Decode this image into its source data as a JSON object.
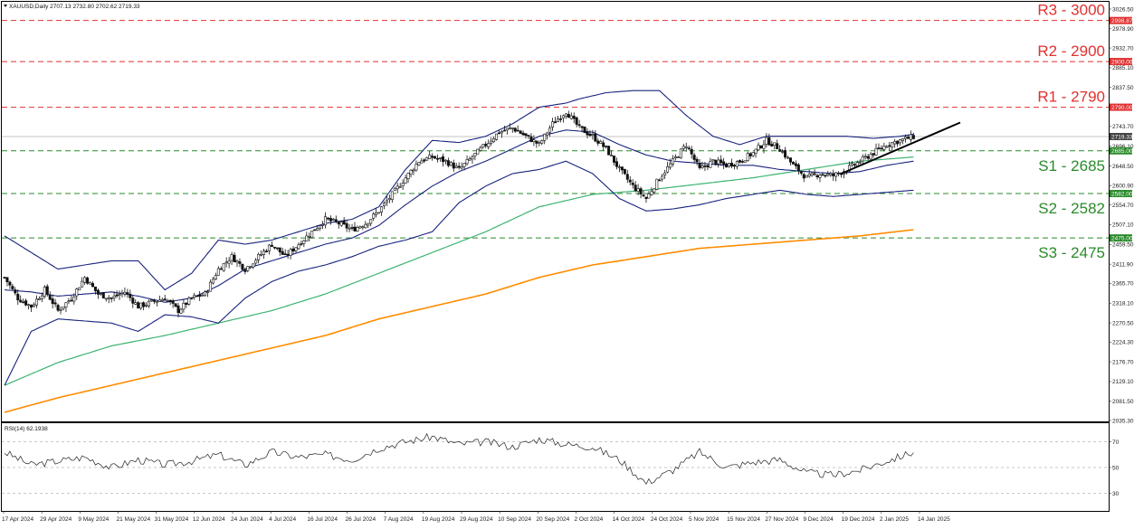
{
  "header": {
    "symbol_line": "XAUUSD,Daily  2707.13 2732.80 2702.62 2719.33",
    "rsi_line": "RSI(14) 62.1938"
  },
  "colors": {
    "resistance": "#e03030",
    "support": "#2a8a2a",
    "bollinger": "#1a237e",
    "ma100": "#3cb371",
    "ma200": "#ff8c00",
    "trendline": "#000000",
    "candle_up": "#111111",
    "candle_down": "#111111"
  },
  "price_axis": {
    "ticks": [
      "3026.50",
      "2978.90",
      "2932.70",
      "2885.10",
      "2837.50",
      "2743.70",
      "2696.10",
      "2648.50",
      "2600.90",
      "2554.70",
      "2507.10",
      "2459.50",
      "2411.90",
      "2365.70",
      "2318.10",
      "2270.50",
      "2224.30",
      "2176.70",
      "2129.10",
      "2081.50",
      "2035.30"
    ],
    "badges": [
      {
        "text": "2998.87",
        "color": "#e03030",
        "value": 2998.87
      },
      {
        "text": "2900.00",
        "color": "#e03030",
        "value": 2900
      },
      {
        "text": "2790.00",
        "color": "#e03030",
        "value": 2790
      },
      {
        "text": "2719.33",
        "color": "#444444",
        "value": 2719.33
      },
      {
        "text": "2685.00",
        "color": "#2a8a2a",
        "value": 2685
      },
      {
        "text": "2582.00",
        "color": "#2a8a2a",
        "value": 2582
      },
      {
        "text": "2475.00",
        "color": "#2a8a2a",
        "value": 2475
      }
    ]
  },
  "levels": [
    {
      "label": "R3 - 3000",
      "value": 2998.87,
      "kind": "resistance"
    },
    {
      "label": "R2 - 2900",
      "value": 2900,
      "kind": "resistance"
    },
    {
      "label": "R1 - 2790",
      "value": 2790,
      "kind": "resistance"
    },
    {
      "label": "S1 - 2685",
      "value": 2685,
      "kind": "support"
    },
    {
      "label": "S2 - 2582",
      "value": 2582,
      "kind": "support"
    },
    {
      "label": "S3 - 2475",
      "value": 2475,
      "kind": "support"
    }
  ],
  "time_axis": [
    "17 Apr 2024",
    "29 Apr 2024",
    "9 May 2024",
    "21 May 2024",
    "31 May 2024",
    "12 Jun 2024",
    "24 Jun 2024",
    "4 Jul 2024",
    "16 Jul 2024",
    "26 Jul 2024",
    "7 Aug 2024",
    "19 Aug 2024",
    "29 Aug 2024",
    "10 Sep 2024",
    "20 Sep 2024",
    "2 Oct 2024",
    "14 Oct 2024",
    "24 Oct 2024",
    "5 Nov 2024",
    "15 Nov 2024",
    "27 Nov 2024",
    "9 Dec 2024",
    "19 Dec 2024",
    "2 Jan 2025",
    "14 Jan 2025"
  ],
  "rsi_axis": [
    "70",
    "50",
    "30"
  ],
  "chart_data": {
    "type": "candlestick",
    "title": "XAUUSD,Daily",
    "ylim": [
      2035.3,
      3026.5
    ],
    "rsi_ylim": [
      17,
      83
    ],
    "close_path": [
      [
        0,
        2380
      ],
      [
        5,
        2330
      ],
      [
        10,
        2310
      ],
      [
        15,
        2350
      ],
      [
        20,
        2300
      ],
      [
        25,
        2330
      ],
      [
        30,
        2380
      ],
      [
        35,
        2340
      ],
      [
        40,
        2330
      ],
      [
        45,
        2345
      ],
      [
        50,
        2310
      ],
      [
        55,
        2320
      ],
      [
        60,
        2330
      ],
      [
        65,
        2300
      ],
      [
        70,
        2330
      ],
      [
        75,
        2340
      ],
      [
        80,
        2400
      ],
      [
        85,
        2430
      ],
      [
        90,
        2400
      ],
      [
        95,
        2430
      ],
      [
        100,
        2460
      ],
      [
        105,
        2430
      ],
      [
        110,
        2460
      ],
      [
        115,
        2490
      ],
      [
        120,
        2520
      ],
      [
        125,
        2510
      ],
      [
        130,
        2495
      ],
      [
        135,
        2510
      ],
      [
        140,
        2540
      ],
      [
        145,
        2580
      ],
      [
        150,
        2620
      ],
      [
        155,
        2660
      ],
      [
        160,
        2670
      ],
      [
        165,
        2660
      ],
      [
        170,
        2640
      ],
      [
        175,
        2670
      ],
      [
        180,
        2700
      ],
      [
        185,
        2730
      ],
      [
        190,
        2740
      ],
      [
        195,
        2720
      ],
      [
        200,
        2700
      ],
      [
        205,
        2750
      ],
      [
        210,
        2780
      ],
      [
        215,
        2740
      ],
      [
        220,
        2720
      ],
      [
        225,
        2690
      ],
      [
        230,
        2640
      ],
      [
        235,
        2600
      ],
      [
        240,
        2570
      ],
      [
        245,
        2620
      ],
      [
        250,
        2660
      ],
      [
        255,
        2700
      ],
      [
        260,
        2640
      ],
      [
        265,
        2660
      ],
      [
        270,
        2650
      ],
      [
        275,
        2660
      ],
      [
        280,
        2680
      ],
      [
        285,
        2710
      ],
      [
        290,
        2690
      ],
      [
        295,
        2650
      ],
      [
        300,
        2620
      ],
      [
        305,
        2630
      ],
      [
        310,
        2625
      ],
      [
        315,
        2640
      ],
      [
        320,
        2660
      ],
      [
        325,
        2680
      ],
      [
        330,
        2700
      ],
      [
        335,
        2710
      ],
      [
        340,
        2719
      ]
    ],
    "ma100": [
      [
        0,
        2120
      ],
      [
        20,
        2175
      ],
      [
        40,
        2215
      ],
      [
        60,
        2240
      ],
      [
        80,
        2270
      ],
      [
        100,
        2300
      ],
      [
        120,
        2340
      ],
      [
        140,
        2390
      ],
      [
        160,
        2440
      ],
      [
        180,
        2490
      ],
      [
        200,
        2550
      ],
      [
        220,
        2580
      ],
      [
        240,
        2590
      ],
      [
        260,
        2605
      ],
      [
        280,
        2620
      ],
      [
        300,
        2640
      ],
      [
        320,
        2660
      ],
      [
        340,
        2670
      ]
    ],
    "ma200": [
      [
        0,
        2055
      ],
      [
        20,
        2090
      ],
      [
        40,
        2120
      ],
      [
        60,
        2150
      ],
      [
        80,
        2180
      ],
      [
        100,
        2210
      ],
      [
        120,
        2240
      ],
      [
        140,
        2280
      ],
      [
        160,
        2310
      ],
      [
        180,
        2340
      ],
      [
        200,
        2380
      ],
      [
        220,
        2410
      ],
      [
        240,
        2430
      ],
      [
        260,
        2450
      ],
      [
        280,
        2460
      ],
      [
        300,
        2470
      ],
      [
        320,
        2480
      ],
      [
        340,
        2495
      ]
    ],
    "boll_upper": [
      [
        0,
        2480
      ],
      [
        10,
        2440
      ],
      [
        20,
        2400
      ],
      [
        30,
        2410
      ],
      [
        40,
        2420
      ],
      [
        50,
        2420
      ],
      [
        60,
        2350
      ],
      [
        70,
        2390
      ],
      [
        80,
        2470
      ],
      [
        90,
        2460
      ],
      [
        100,
        2470
      ],
      [
        110,
        2490
      ],
      [
        120,
        2510
      ],
      [
        130,
        2520
      ],
      [
        140,
        2550
      ],
      [
        150,
        2640
      ],
      [
        160,
        2710
      ],
      [
        170,
        2705
      ],
      [
        180,
        2720
      ],
      [
        190,
        2750
      ],
      [
        200,
        2790
      ],
      [
        210,
        2800
      ],
      [
        215,
        2810
      ],
      [
        225,
        2825
      ],
      [
        235,
        2830
      ],
      [
        245,
        2830
      ],
      [
        255,
        2770
      ],
      [
        265,
        2720
      ],
      [
        275,
        2700
      ],
      [
        285,
        2720
      ],
      [
        295,
        2720
      ],
      [
        305,
        2720
      ],
      [
        315,
        2720
      ],
      [
        325,
        2715
      ],
      [
        335,
        2720
      ],
      [
        340,
        2725
      ]
    ],
    "boll_middle": [
      [
        0,
        2350
      ],
      [
        10,
        2345
      ],
      [
        20,
        2335
      ],
      [
        30,
        2340
      ],
      [
        40,
        2345
      ],
      [
        50,
        2335
      ],
      [
        60,
        2320
      ],
      [
        70,
        2330
      ],
      [
        80,
        2360
      ],
      [
        90,
        2400
      ],
      [
        100,
        2420
      ],
      [
        110,
        2440
      ],
      [
        120,
        2460
      ],
      [
        130,
        2475
      ],
      [
        140,
        2505
      ],
      [
        150,
        2555
      ],
      [
        160,
        2600
      ],
      [
        170,
        2635
      ],
      [
        180,
        2660
      ],
      [
        190,
        2690
      ],
      [
        200,
        2720
      ],
      [
        210,
        2735
      ],
      [
        220,
        2730
      ],
      [
        230,
        2700
      ],
      [
        240,
        2675
      ],
      [
        250,
        2660
      ],
      [
        260,
        2655
      ],
      [
        270,
        2650
      ],
      [
        280,
        2650
      ],
      [
        290,
        2640
      ],
      [
        300,
        2635
      ],
      [
        310,
        2630
      ],
      [
        320,
        2635
      ],
      [
        330,
        2650
      ],
      [
        340,
        2660
      ]
    ],
    "boll_lower": [
      [
        0,
        2120
      ],
      [
        10,
        2250
      ],
      [
        20,
        2280
      ],
      [
        30,
        2275
      ],
      [
        40,
        2270
      ],
      [
        50,
        2250
      ],
      [
        60,
        2290
      ],
      [
        70,
        2285
      ],
      [
        80,
        2270
      ],
      [
        90,
        2330
      ],
      [
        100,
        2370
      ],
      [
        110,
        2395
      ],
      [
        120,
        2410
      ],
      [
        130,
        2430
      ],
      [
        140,
        2455
      ],
      [
        150,
        2470
      ],
      [
        160,
        2490
      ],
      [
        170,
        2560
      ],
      [
        180,
        2600
      ],
      [
        190,
        2630
      ],
      [
        200,
        2640
      ],
      [
        210,
        2660
      ],
      [
        220,
        2630
      ],
      [
        230,
        2570
      ],
      [
        240,
        2540
      ],
      [
        250,
        2545
      ],
      [
        260,
        2555
      ],
      [
        270,
        2570
      ],
      [
        280,
        2580
      ],
      [
        290,
        2590
      ],
      [
        300,
        2580
      ],
      [
        310,
        2575
      ],
      [
        320,
        2580
      ],
      [
        330,
        2585
      ],
      [
        340,
        2590
      ]
    ],
    "trendline": [
      [
        313,
        2630
      ],
      [
        348,
        2740
      ]
    ],
    "rsi_path": [
      [
        0,
        62
      ],
      [
        10,
        52
      ],
      [
        20,
        55
      ],
      [
        30,
        58
      ],
      [
        40,
        50
      ],
      [
        50,
        56
      ],
      [
        60,
        52
      ],
      [
        70,
        55
      ],
      [
        80,
        60
      ],
      [
        90,
        52
      ],
      [
        100,
        62
      ],
      [
        110,
        58
      ],
      [
        120,
        60
      ],
      [
        130,
        56
      ],
      [
        140,
        65
      ],
      [
        150,
        70
      ],
      [
        160,
        74
      ],
      [
        170,
        68
      ],
      [
        180,
        70
      ],
      [
        190,
        66
      ],
      [
        200,
        72
      ],
      [
        210,
        68
      ],
      [
        220,
        66
      ],
      [
        230,
        56
      ],
      [
        240,
        38
      ],
      [
        250,
        48
      ],
      [
        260,
        62
      ],
      [
        270,
        50
      ],
      [
        280,
        54
      ],
      [
        290,
        56
      ],
      [
        300,
        46
      ],
      [
        310,
        44
      ],
      [
        320,
        48
      ],
      [
        330,
        55
      ],
      [
        340,
        62
      ]
    ]
  }
}
